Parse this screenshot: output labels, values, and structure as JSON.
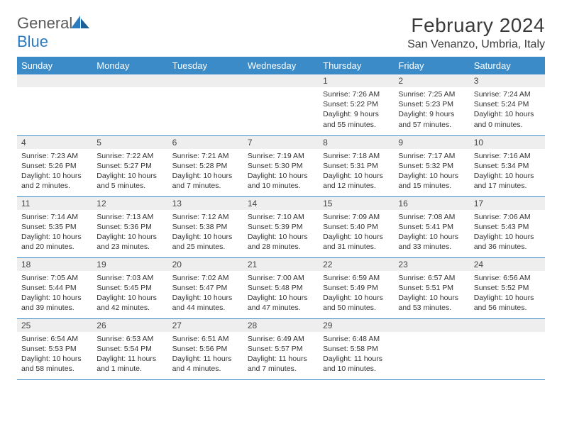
{
  "logo": {
    "text1": "General",
    "text2": "Blue"
  },
  "title": "February 2024",
  "location": "San Venanzo, Umbria, Italy",
  "colors": {
    "header_bg": "#3b8bc9",
    "header_text": "#ffffff",
    "daynum_bg": "#eeeeee",
    "border": "#3b8bc9",
    "logo_gray": "#5a5a5a",
    "logo_blue": "#2a7bbf"
  },
  "day_names": [
    "Sunday",
    "Monday",
    "Tuesday",
    "Wednesday",
    "Thursday",
    "Friday",
    "Saturday"
  ],
  "weeks": [
    [
      null,
      null,
      null,
      null,
      {
        "n": "1",
        "sr": "7:26 AM",
        "ss": "5:22 PM",
        "dl": "9 hours and 55 minutes."
      },
      {
        "n": "2",
        "sr": "7:25 AM",
        "ss": "5:23 PM",
        "dl": "9 hours and 57 minutes."
      },
      {
        "n": "3",
        "sr": "7:24 AM",
        "ss": "5:24 PM",
        "dl": "10 hours and 0 minutes."
      }
    ],
    [
      {
        "n": "4",
        "sr": "7:23 AM",
        "ss": "5:26 PM",
        "dl": "10 hours and 2 minutes."
      },
      {
        "n": "5",
        "sr": "7:22 AM",
        "ss": "5:27 PM",
        "dl": "10 hours and 5 minutes."
      },
      {
        "n": "6",
        "sr": "7:21 AM",
        "ss": "5:28 PM",
        "dl": "10 hours and 7 minutes."
      },
      {
        "n": "7",
        "sr": "7:19 AM",
        "ss": "5:30 PM",
        "dl": "10 hours and 10 minutes."
      },
      {
        "n": "8",
        "sr": "7:18 AM",
        "ss": "5:31 PM",
        "dl": "10 hours and 12 minutes."
      },
      {
        "n": "9",
        "sr": "7:17 AM",
        "ss": "5:32 PM",
        "dl": "10 hours and 15 minutes."
      },
      {
        "n": "10",
        "sr": "7:16 AM",
        "ss": "5:34 PM",
        "dl": "10 hours and 17 minutes."
      }
    ],
    [
      {
        "n": "11",
        "sr": "7:14 AM",
        "ss": "5:35 PM",
        "dl": "10 hours and 20 minutes."
      },
      {
        "n": "12",
        "sr": "7:13 AM",
        "ss": "5:36 PM",
        "dl": "10 hours and 23 minutes."
      },
      {
        "n": "13",
        "sr": "7:12 AM",
        "ss": "5:38 PM",
        "dl": "10 hours and 25 minutes."
      },
      {
        "n": "14",
        "sr": "7:10 AM",
        "ss": "5:39 PM",
        "dl": "10 hours and 28 minutes."
      },
      {
        "n": "15",
        "sr": "7:09 AM",
        "ss": "5:40 PM",
        "dl": "10 hours and 31 minutes."
      },
      {
        "n": "16",
        "sr": "7:08 AM",
        "ss": "5:41 PM",
        "dl": "10 hours and 33 minutes."
      },
      {
        "n": "17",
        "sr": "7:06 AM",
        "ss": "5:43 PM",
        "dl": "10 hours and 36 minutes."
      }
    ],
    [
      {
        "n": "18",
        "sr": "7:05 AM",
        "ss": "5:44 PM",
        "dl": "10 hours and 39 minutes."
      },
      {
        "n": "19",
        "sr": "7:03 AM",
        "ss": "5:45 PM",
        "dl": "10 hours and 42 minutes."
      },
      {
        "n": "20",
        "sr": "7:02 AM",
        "ss": "5:47 PM",
        "dl": "10 hours and 44 minutes."
      },
      {
        "n": "21",
        "sr": "7:00 AM",
        "ss": "5:48 PM",
        "dl": "10 hours and 47 minutes."
      },
      {
        "n": "22",
        "sr": "6:59 AM",
        "ss": "5:49 PM",
        "dl": "10 hours and 50 minutes."
      },
      {
        "n": "23",
        "sr": "6:57 AM",
        "ss": "5:51 PM",
        "dl": "10 hours and 53 minutes."
      },
      {
        "n": "24",
        "sr": "6:56 AM",
        "ss": "5:52 PM",
        "dl": "10 hours and 56 minutes."
      }
    ],
    [
      {
        "n": "25",
        "sr": "6:54 AM",
        "ss": "5:53 PM",
        "dl": "10 hours and 58 minutes."
      },
      {
        "n": "26",
        "sr": "6:53 AM",
        "ss": "5:54 PM",
        "dl": "11 hours and 1 minute."
      },
      {
        "n": "27",
        "sr": "6:51 AM",
        "ss": "5:56 PM",
        "dl": "11 hours and 4 minutes."
      },
      {
        "n": "28",
        "sr": "6:49 AM",
        "ss": "5:57 PM",
        "dl": "11 hours and 7 minutes."
      },
      {
        "n": "29",
        "sr": "6:48 AM",
        "ss": "5:58 PM",
        "dl": "11 hours and 10 minutes."
      },
      null,
      null
    ]
  ],
  "labels": {
    "sunrise": "Sunrise: ",
    "sunset": "Sunset: ",
    "daylight": "Daylight: "
  }
}
